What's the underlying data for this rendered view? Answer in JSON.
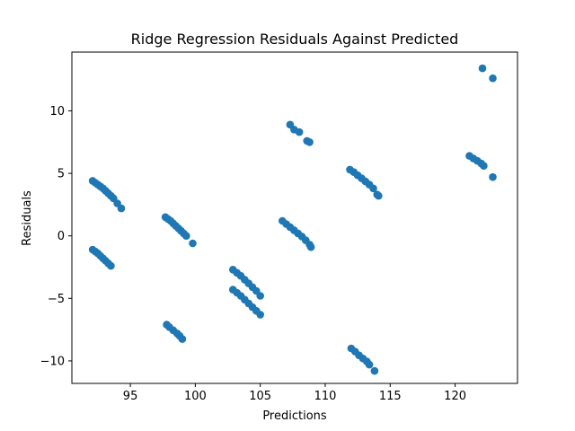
{
  "chart_data": {
    "type": "scatter",
    "title": "Ridge Regression Residuals Against Predicted",
    "xlabel": "Predictions",
    "ylabel": "Residuals",
    "xlim": [
      90.5,
      124.8
    ],
    "ylim": [
      -11.8,
      14.7
    ],
    "xticks": [
      95,
      100,
      105,
      110,
      115,
      120
    ],
    "yticks": [
      -10,
      -5,
      0,
      5,
      10
    ],
    "xtick_labels": [
      "95",
      "100",
      "105",
      "110",
      "115",
      "120"
    ],
    "ytick_labels": [
      "−10",
      "−5",
      "0",
      "5",
      "10"
    ],
    "grid": false,
    "legend": "none",
    "point_color": "#1f77b4",
    "points": [
      [
        92.1,
        4.4
      ],
      [
        92.3,
        4.25
      ],
      [
        92.5,
        4.1
      ],
      [
        92.7,
        3.95
      ],
      [
        92.9,
        3.8
      ],
      [
        93.1,
        3.6
      ],
      [
        93.3,
        3.4
      ],
      [
        93.5,
        3.2
      ],
      [
        93.7,
        3.0
      ],
      [
        94.0,
        2.6
      ],
      [
        94.3,
        2.2
      ],
      [
        92.1,
        -1.1
      ],
      [
        92.3,
        -1.25
      ],
      [
        92.5,
        -1.4
      ],
      [
        92.7,
        -1.6
      ],
      [
        92.9,
        -1.8
      ],
      [
        93.1,
        -2.0
      ],
      [
        93.3,
        -2.2
      ],
      [
        93.5,
        -2.4
      ],
      [
        97.7,
        1.5
      ],
      [
        97.9,
        1.35
      ],
      [
        98.1,
        1.2
      ],
      [
        98.3,
        1.0
      ],
      [
        98.5,
        0.8
      ],
      [
        98.7,
        0.6
      ],
      [
        98.9,
        0.4
      ],
      [
        99.1,
        0.2
      ],
      [
        99.3,
        0.0
      ],
      [
        99.8,
        -0.6
      ],
      [
        97.8,
        -7.1
      ],
      [
        98.0,
        -7.3
      ],
      [
        98.3,
        -7.55
      ],
      [
        98.6,
        -7.8
      ],
      [
        98.8,
        -8.0
      ],
      [
        99.0,
        -8.25
      ],
      [
        102.9,
        -2.7
      ],
      [
        103.2,
        -2.95
      ],
      [
        103.5,
        -3.2
      ],
      [
        103.8,
        -3.5
      ],
      [
        104.1,
        -3.8
      ],
      [
        104.4,
        -4.1
      ],
      [
        104.7,
        -4.4
      ],
      [
        105.0,
        -4.8
      ],
      [
        102.9,
        -4.3
      ],
      [
        103.2,
        -4.55
      ],
      [
        103.5,
        -4.8
      ],
      [
        103.8,
        -5.1
      ],
      [
        104.1,
        -5.4
      ],
      [
        104.4,
        -5.7
      ],
      [
        104.7,
        -6.0
      ],
      [
        105.0,
        -6.3
      ],
      [
        106.7,
        1.2
      ],
      [
        107.0,
        0.95
      ],
      [
        107.3,
        0.7
      ],
      [
        107.6,
        0.45
      ],
      [
        107.9,
        0.2
      ],
      [
        108.2,
        -0.05
      ],
      [
        108.5,
        -0.35
      ],
      [
        108.8,
        -0.7
      ],
      [
        108.9,
        -0.9
      ],
      [
        107.3,
        8.9
      ],
      [
        107.6,
        8.5
      ],
      [
        108.0,
        8.3
      ],
      [
        108.6,
        7.6
      ],
      [
        108.8,
        7.5
      ],
      [
        111.9,
        5.3
      ],
      [
        112.2,
        5.1
      ],
      [
        112.5,
        4.85
      ],
      [
        112.8,
        4.6
      ],
      [
        113.1,
        4.35
      ],
      [
        113.4,
        4.1
      ],
      [
        113.7,
        3.8
      ],
      [
        114.0,
        3.3
      ],
      [
        114.1,
        3.2
      ],
      [
        112.0,
        -9.0
      ],
      [
        112.3,
        -9.25
      ],
      [
        112.6,
        -9.55
      ],
      [
        112.9,
        -9.8
      ],
      [
        113.2,
        -10.05
      ],
      [
        113.4,
        -10.3
      ],
      [
        113.8,
        -10.8
      ],
      [
        121.1,
        6.4
      ],
      [
        121.4,
        6.2
      ],
      [
        121.7,
        6.0
      ],
      [
        122.0,
        5.8
      ],
      [
        122.2,
        5.6
      ],
      [
        122.1,
        13.4
      ],
      [
        122.9,
        12.6
      ],
      [
        122.9,
        4.7
      ]
    ]
  }
}
